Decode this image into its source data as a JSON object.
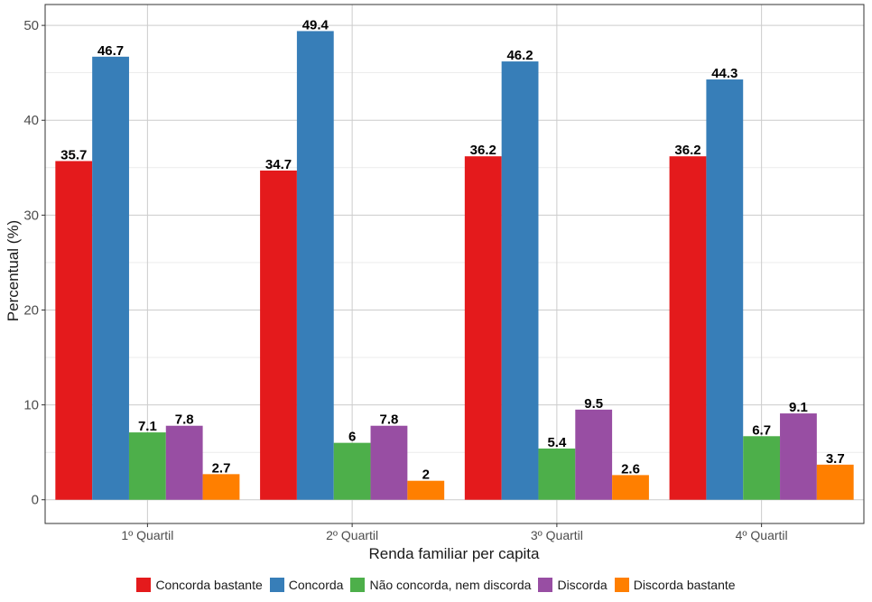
{
  "chart_data": {
    "type": "bar",
    "xlabel": "Renda familiar per capita",
    "ylabel": "Percentual (%)",
    "ylim": [
      -2.5,
      52.2
    ],
    "yticks": [
      0,
      10,
      20,
      30,
      40,
      50
    ],
    "grid": true,
    "legend_position": "bottom",
    "categories": [
      "1º Quartil",
      "2º Quartil",
      "3º Quartil",
      "4º Quartil"
    ],
    "series": [
      {
        "name": "Concorda bastante",
        "color": "#e41a1c",
        "values": [
          35.7,
          34.7,
          36.2,
          36.2
        ],
        "labels": [
          "35.7",
          "34.7",
          "36.2",
          "36.2"
        ]
      },
      {
        "name": "Concorda",
        "color": "#377eb8",
        "values": [
          46.7,
          49.4,
          46.2,
          44.3
        ],
        "labels": [
          "46.7",
          "49.4",
          "46.2",
          "44.3"
        ]
      },
      {
        "name": "Não concorda, nem discorda",
        "color": "#4daf4a",
        "values": [
          7.1,
          6,
          5.4,
          6.7
        ],
        "labels": [
          "7.1",
          "6",
          "5.4",
          "6.7"
        ]
      },
      {
        "name": "Discorda",
        "color": "#984ea3",
        "values": [
          7.8,
          7.8,
          9.5,
          9.1
        ],
        "labels": [
          "7.8",
          "7.8",
          "9.5",
          "9.1"
        ]
      },
      {
        "name": "Discorda bastante",
        "color": "#ff7f00",
        "values": [
          2.7,
          2,
          2.6,
          3.7
        ],
        "labels": [
          "2.7",
          "2",
          "2.6",
          "3.7"
        ]
      }
    ]
  }
}
